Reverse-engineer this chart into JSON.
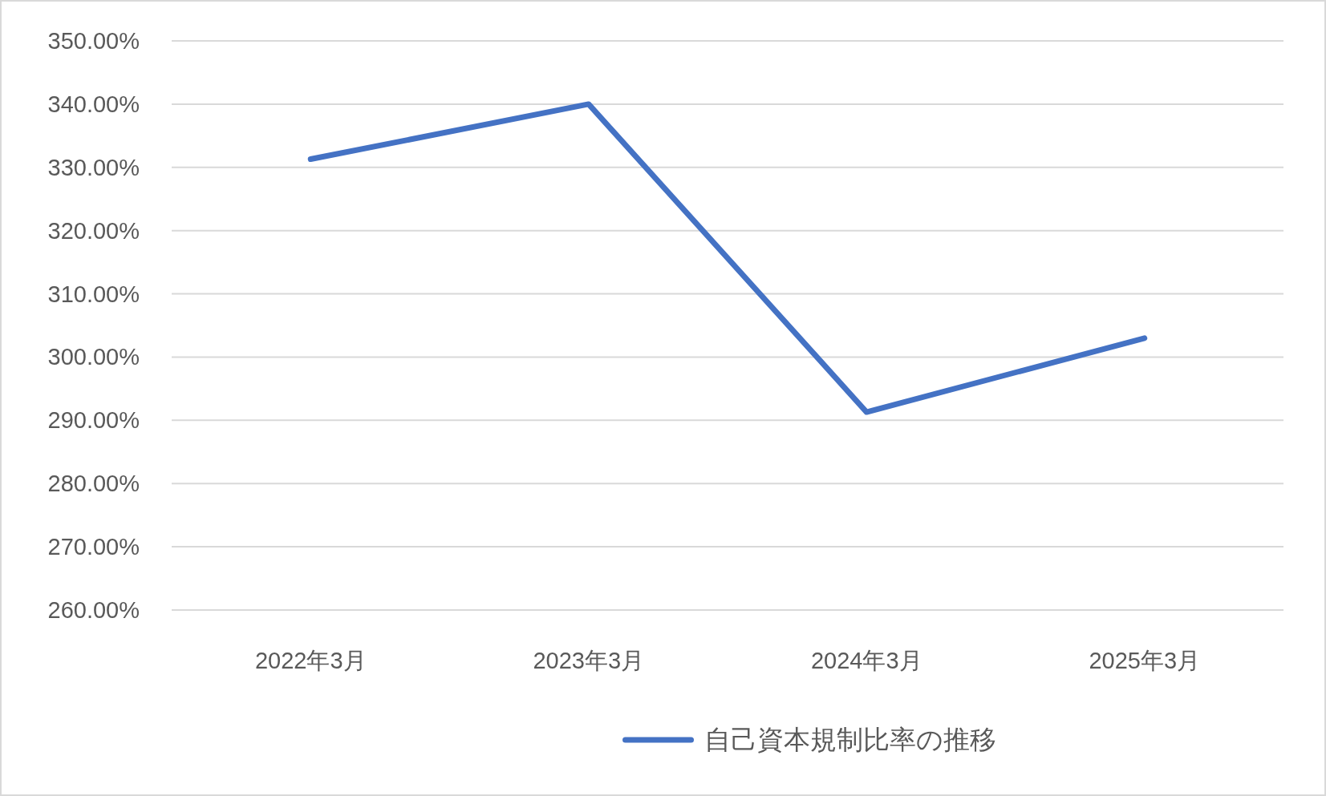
{
  "chart_data": {
    "type": "line",
    "categories": [
      "2022年3月",
      "2023年3月",
      "2024年3月",
      "2025年3月"
    ],
    "series": [
      {
        "name": "自己資本規制比率の推移",
        "color": "#4472c4",
        "values": [
          331.3,
          340.0,
          291.3,
          303.0
        ]
      }
    ],
    "ylim": [
      260,
      350
    ],
    "yticks": [
      {
        "value": 260,
        "label": "260.00%"
      },
      {
        "value": 270,
        "label": "270.00%"
      },
      {
        "value": 280,
        "label": "280.00%"
      },
      {
        "value": 290,
        "label": "290.00%"
      },
      {
        "value": 300,
        "label": "300.00%"
      },
      {
        "value": 310,
        "label": "310.00%"
      },
      {
        "value": 320,
        "label": "320.00%"
      },
      {
        "value": 330,
        "label": "330.00%"
      },
      {
        "value": 340,
        "label": "340.00%"
      },
      {
        "value": 350,
        "label": "350.00%"
      }
    ],
    "grid": "y",
    "legend": "bottom"
  }
}
